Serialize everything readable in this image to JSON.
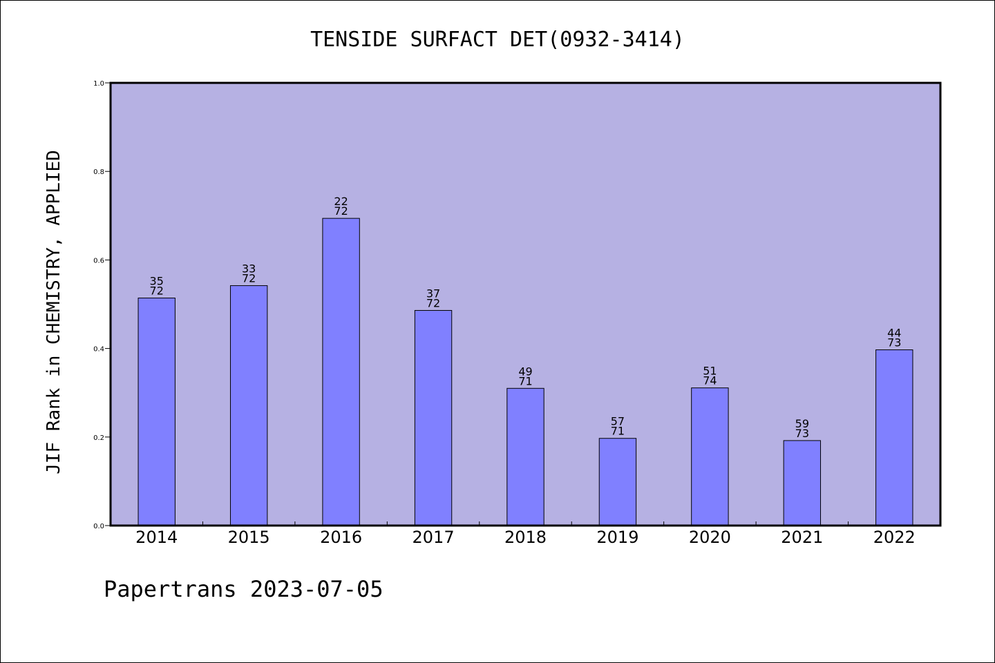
{
  "chart_data": {
    "type": "bar",
    "title": "TENSIDE SURFACT DET(0932-3414)",
    "ylabel": "JIF Rank in CHEMISTRY, APPLIED",
    "xlabel": "",
    "ylim": [
      0,
      1.0
    ],
    "yticks": [
      "0.0",
      "0.2",
      "0.4",
      "0.6",
      "0.8",
      "1.0"
    ],
    "categories": [
      "2014",
      "2015",
      "2016",
      "2017",
      "2018",
      "2019",
      "2020",
      "2021",
      "2022"
    ],
    "values": [
      0.514,
      0.542,
      0.694,
      0.486,
      0.31,
      0.197,
      0.311,
      0.192,
      0.397
    ],
    "labels": [
      {
        "rank": "35",
        "total": "72"
      },
      {
        "rank": "33",
        "total": "72"
      },
      {
        "rank": "22",
        "total": "72"
      },
      {
        "rank": "37",
        "total": "72"
      },
      {
        "rank": "49",
        "total": "71"
      },
      {
        "rank": "57",
        "total": "71"
      },
      {
        "rank": "51",
        "total": "74"
      },
      {
        "rank": "59",
        "total": "73"
      },
      {
        "rank": "44",
        "total": "73"
      }
    ],
    "grid": false,
    "legend": "none",
    "colors": {
      "plot_background": "#b6b1e3",
      "bar_fill": "#8080ff",
      "bar_stroke": "#000000"
    }
  },
  "footer": {
    "text": "Papertrans 2023-07-05"
  }
}
